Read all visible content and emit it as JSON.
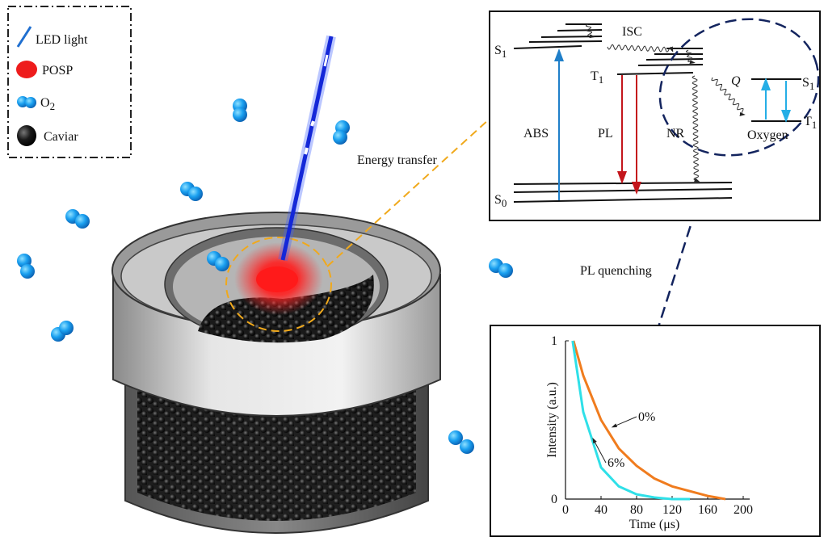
{
  "legend": {
    "items": [
      {
        "label": "LED light"
      },
      {
        "label": "POSP"
      },
      {
        "label": "O",
        "sub": "2"
      },
      {
        "label": "Caviar"
      }
    ]
  },
  "annotations": {
    "energy_transfer": "Energy transfer",
    "pl_quenching": "PL quenching"
  },
  "energy_diagram": {
    "s1": {
      "label": "S",
      "sub": "1"
    },
    "t1": {
      "label": "T",
      "sub": "1"
    },
    "s0": {
      "label": "S",
      "sub": "0"
    },
    "isc": "ISC",
    "abs": "ABS",
    "pl": "PL",
    "nr": "NR",
    "q": "Q",
    "oxygen_s1": {
      "label": "S",
      "sub": "1"
    },
    "oxygen_t1": {
      "label": "T",
      "sub": "1"
    },
    "oxygen": "Oxygen"
  },
  "inset_chart": {
    "type": "line",
    "x_label": "Time (μs)",
    "y_label": "Intensity (a.u.)",
    "xlim": [
      0,
      200
    ],
    "ylim": [
      0,
      1
    ],
    "xticks": [
      0,
      40,
      80,
      120,
      160,
      200
    ],
    "yticks": [
      0,
      1
    ],
    "series": [
      {
        "name": "0%",
        "color": "#f07c1e",
        "x": [
          9,
          20,
          40,
          60,
          80,
          100,
          120,
          140,
          160,
          180
        ],
        "values": [
          1,
          0.78,
          0.5,
          0.32,
          0.21,
          0.13,
          0.08,
          0.05,
          0.02,
          0
        ]
      },
      {
        "name": "6%",
        "color": "#2fe0e8",
        "x": [
          8,
          20,
          40,
          60,
          80,
          100,
          120,
          140
        ],
        "values": [
          1,
          0.55,
          0.2,
          0.08,
          0.03,
          0.01,
          0,
          0
        ]
      }
    ]
  }
}
